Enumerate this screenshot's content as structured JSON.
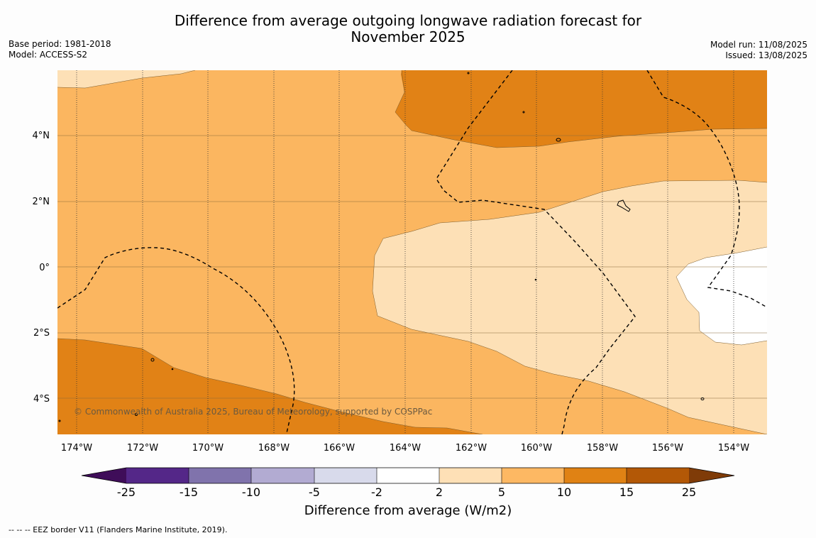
{
  "title": {
    "line1": "Difference from average outgoing longwave radiation forecast for",
    "line2": "November 2025"
  },
  "meta": {
    "base_period": "Base period: 1981-2018",
    "model": "Model: ACCESS-S2",
    "model_run": "Model run: 11/08/2025",
    "issued": "Issued: 13/08/2025"
  },
  "map": {
    "copyright": "© Commonwealth of Australia 2025, Bureau of Meteorology, supported by COSPPac",
    "lon_labels": [
      "174°W",
      "172°W",
      "170°W",
      "168°W",
      "166°W",
      "164°W",
      "162°W",
      "160°W",
      "158°W",
      "156°W",
      "154°W"
    ],
    "lat_labels": [
      "4°N",
      "2°N",
      "0°",
      "2°S",
      "4°S"
    ],
    "band_colors": {
      "5_10": "#fbb660",
      "10_15": "#e18216",
      "2_5": "#fde0b6",
      "neutral": "#ffffff"
    }
  },
  "colorbar": {
    "title": "Difference from average (W/m2)",
    "tick_labels": [
      "-25",
      "-15",
      "-10",
      "-5",
      "-2",
      "2",
      "5",
      "10",
      "15",
      "25"
    ],
    "colors": [
      "#3f0d59",
      "#542788",
      "#8073ac",
      "#b2abd2",
      "#d8daeb",
      "#ffffff",
      "#fee0b6",
      "#fdb863",
      "#e08214",
      "#b35806",
      "#7f3b08"
    ]
  },
  "footnote": "--  --  -- EEZ border V11 (Flanders Marine Institute, 2019)."
}
